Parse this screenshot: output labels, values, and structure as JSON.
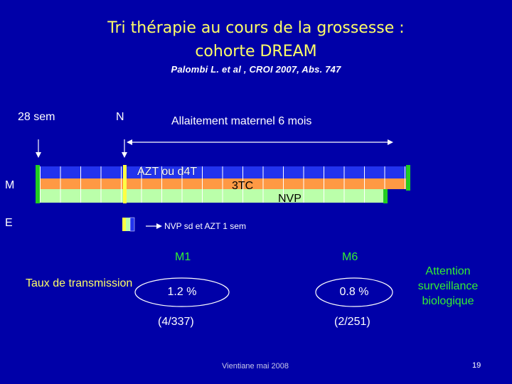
{
  "title_line1": "Tri thérapie au cours de la grossesse :",
  "title_line2": "cohorte DREAM",
  "reference": "Palombi L. et al , CROI 2007, Abs. 747",
  "timeline": {
    "label_28sem": "28 sem",
    "label_n": "N",
    "label_allaitement": "Allaitement maternel 6 mois",
    "label_m": "M",
    "label_e": "E",
    "label_azt": "AZT ou d4T",
    "label_3tc": "3TC",
    "label_nvp": "NVP",
    "label_infant": "NVP sd et AZT 1 sem"
  },
  "results": {
    "label_m1": "M1",
    "label_m6": "M6",
    "row_label": "Taux de transmission",
    "m1_rate": "1.2 %",
    "m6_rate": "0.8 %",
    "m1_count": "(4/337)",
    "m6_count": "(2/251)"
  },
  "note": {
    "line1": "Attention",
    "line2": "surveillance",
    "line3": "biologique"
  },
  "footer": "Vientiane mai 2008",
  "page_number": "19",
  "colors": {
    "background": "#0000a8",
    "title": "#ffff66",
    "blue_band": "#2233ee",
    "orange_band": "#ff9944",
    "lightgreen_band": "#bbffaa",
    "marker_green": "#22cc22",
    "marker_yellow": "#ffff44",
    "label_green": "#33ee33"
  }
}
